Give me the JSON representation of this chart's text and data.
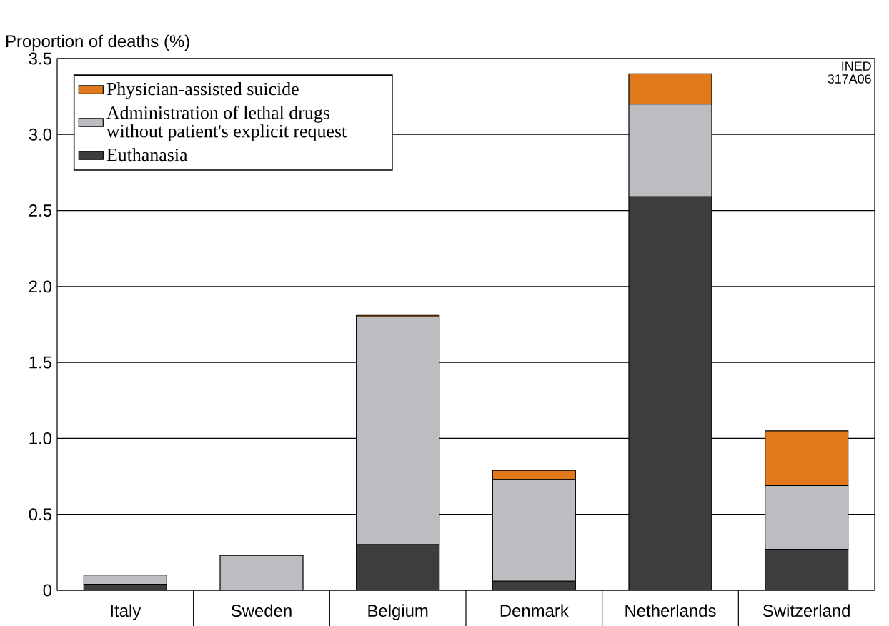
{
  "chart_data": {
    "type": "bar",
    "stacked": true,
    "ylabel": "Proportion of deaths (%)",
    "categories": [
      "Italy",
      "Sweden",
      "Belgium",
      "Denmark",
      "Netherlands",
      "Switzerland"
    ],
    "series": [
      {
        "name": "Euthanasia",
        "color": "#3d3d3d",
        "values": [
          0.04,
          0,
          0.3,
          0.06,
          2.59,
          0.27
        ]
      },
      {
        "name": "Administration of lethal drugs without patient's explicit request",
        "color": "#bcbdc0",
        "values": [
          0.06,
          0.23,
          1.5,
          0.67,
          0.61,
          0.42
        ]
      },
      {
        "name": "Physician-assisted suicide",
        "color": "#e07a1c",
        "values": [
          0,
          0,
          0.01,
          0.06,
          0.2,
          0.36
        ]
      }
    ],
    "ylim": [
      0,
      3.5
    ],
    "yticks": [
      0,
      0.5,
      {
        "value": 1,
        "label": "1.0"
      },
      1.5,
      {
        "value": 2,
        "label": "2.0"
      },
      2.5,
      {
        "value": 3,
        "label": "3.0"
      },
      3.5
    ],
    "grid": "y",
    "legend": "top left",
    "annotations": [
      "INED",
      "317A06"
    ]
  }
}
